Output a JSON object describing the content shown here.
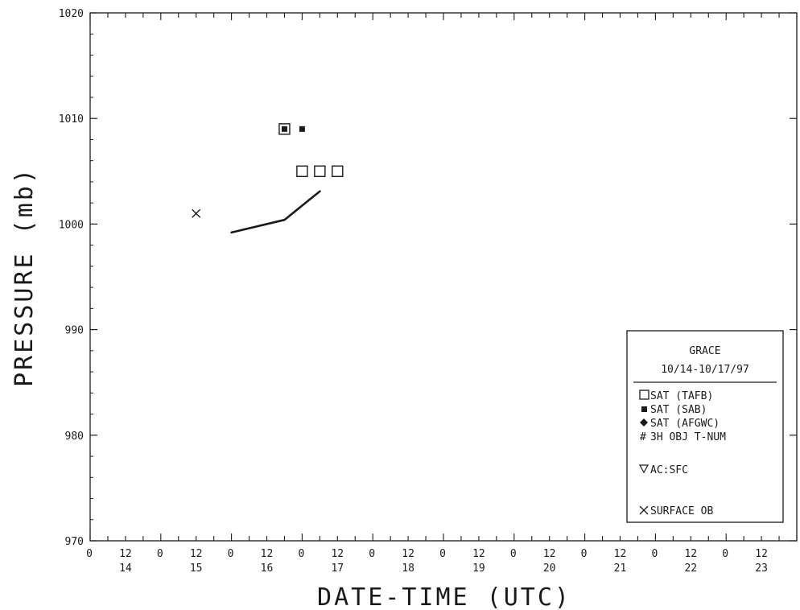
{
  "chart_data": {
    "type": "scatter",
    "xlabel": "DATE-TIME (UTC)",
    "ylabel": "PRESSURE (mb)",
    "ylim": [
      970,
      1020
    ],
    "xlim": [
      "1997-10-14T00:00Z",
      "1997-10-24T00:00Z"
    ],
    "y_ticks": [
      "970",
      "980",
      "990",
      "1000",
      "1010",
      "1020"
    ],
    "x_hour_ticks": [
      "0",
      "12"
    ],
    "x_day_ticks": [
      "14",
      "15",
      "16",
      "17",
      "18",
      "19",
      "20",
      "21",
      "22",
      "23"
    ],
    "grid": false,
    "legend": {
      "placement": "bottom-right",
      "title": "GRACE",
      "subtitle": "10/14-10/17/97",
      "entries": [
        {
          "symbol": "open-square",
          "label": "SAT (TAFB)"
        },
        {
          "symbol": "filled-square",
          "label": "SAT (SAB)"
        },
        {
          "symbol": "diamond",
          "label": "SAT (AFGWC)"
        },
        {
          "symbol": "hash",
          "label": "3H OBJ T-NUM"
        },
        {
          "symbol": "triangle-down",
          "label": "AC:SFC"
        },
        {
          "symbol": "x",
          "label": "SURFACE OB"
        }
      ]
    },
    "series": [
      {
        "name": "SAT (TAFB)",
        "symbol": "open-square",
        "x": [
          "1997-10-16T18:00Z",
          "1997-10-17T00:00Z",
          "1997-10-17T06:00Z",
          "1997-10-17T12:00Z"
        ],
        "y": [
          1009,
          1005,
          1005,
          1005
        ]
      },
      {
        "name": "SAT (SAB)",
        "symbol": "filled-square",
        "x": [
          "1997-10-16T18:00Z",
          "1997-10-17T00:00Z"
        ],
        "y": [
          1009,
          1009
        ]
      },
      {
        "name": "SURFACE OB",
        "symbol": "x",
        "x": [
          "1997-10-15T12:00Z"
        ],
        "y": [
          1001
        ]
      },
      {
        "symbol": "line",
        "x": [
          "1997-10-16T00:00Z",
          "1997-10-16T18:00Z",
          "1997-10-17T06:00Z"
        ],
        "y": [
          999.2,
          1000.4,
          1003.1
        ]
      }
    ]
  }
}
